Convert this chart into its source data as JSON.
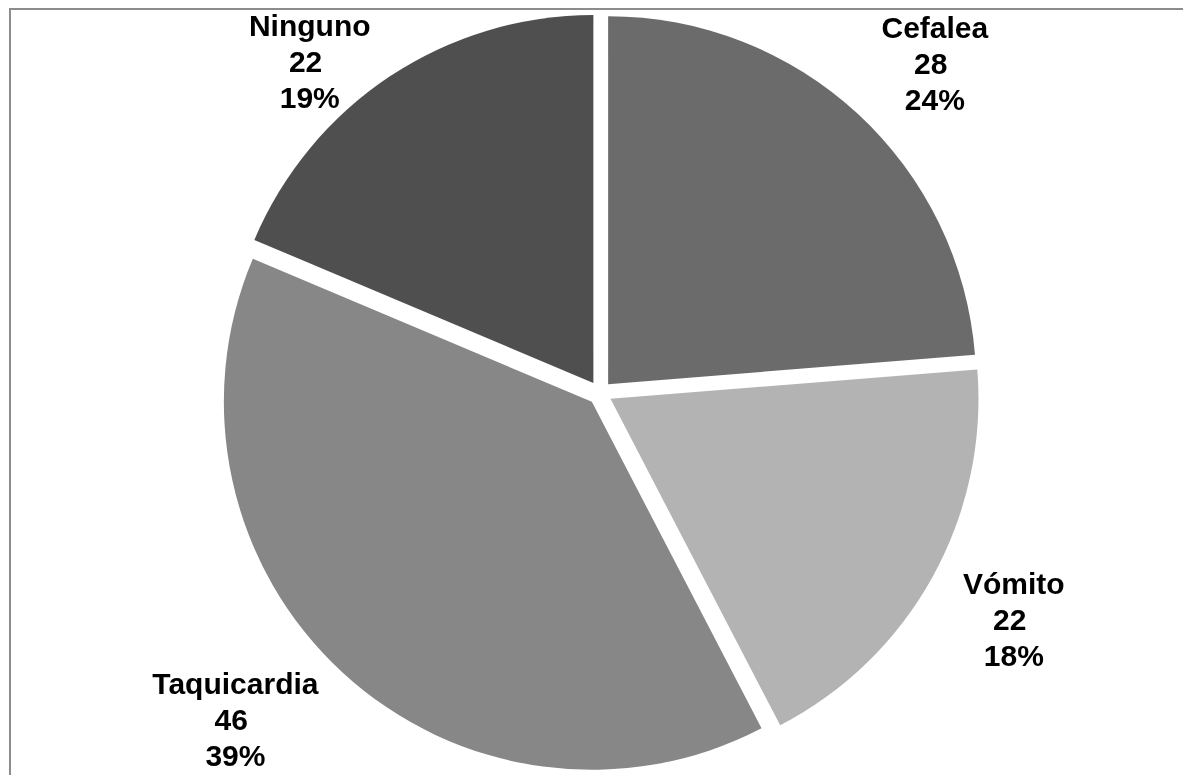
{
  "chart_data": {
    "type": "pie",
    "categories": [
      "Cefalea",
      "Vómito",
      "Taquicardia",
      "Ninguno"
    ],
    "values": [
      28,
      22,
      46,
      22
    ],
    "colors": [
      "#6b6b6b",
      "#b3b3b3",
      "#878787",
      "#4f4f4f"
    ],
    "value_labels": [
      "28\n24%",
      "22\n18%",
      "46\n39%",
      "22\n19%"
    ]
  }
}
